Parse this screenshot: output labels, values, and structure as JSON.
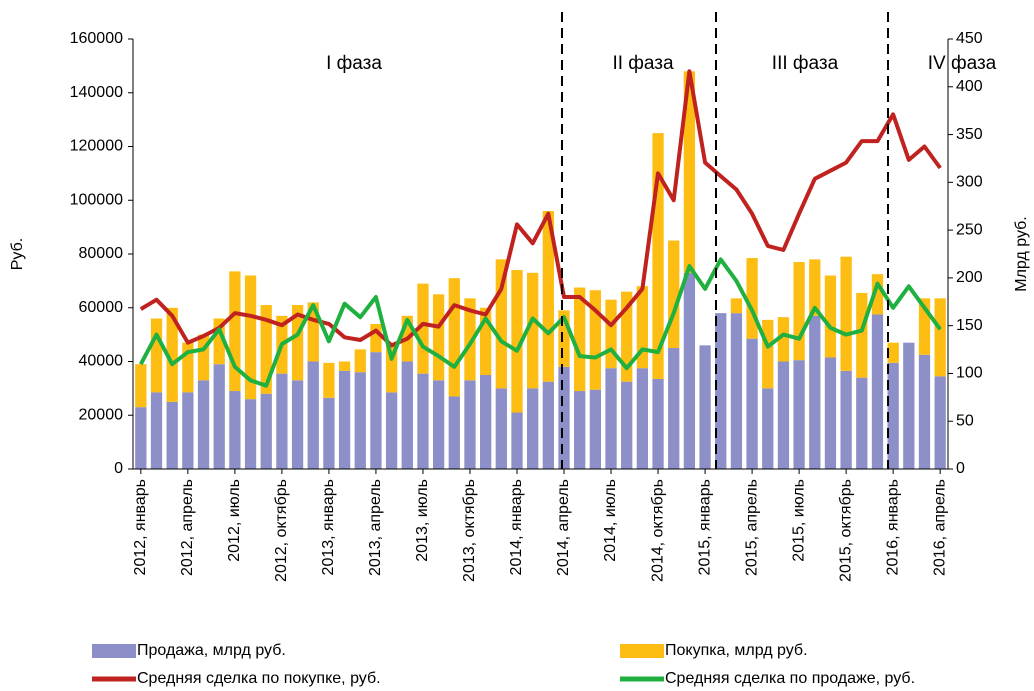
{
  "chart_data": {
    "type": "combo",
    "y_label": "Руб.",
    "y2_label": "Млрд руб.",
    "annotations": [
      "I фаза",
      "II фаза",
      "III фаза",
      "IV фаза"
    ],
    "categories": [
      "2012, январь",
      null,
      null,
      "2012, апрель",
      null,
      null,
      "2012, июль",
      null,
      null,
      "2012, октябрь",
      null,
      null,
      "2013, январь",
      null,
      null,
      "2013, апрель",
      null,
      null,
      "2013, июль",
      null,
      null,
      "2013, октябрь",
      null,
      null,
      "2014, январь",
      null,
      null,
      "2014, апрель",
      null,
      null,
      "2014, июль",
      null,
      null,
      "2014, октябрь",
      null,
      null,
      "2015, январь",
      null,
      null,
      "2015, апрель",
      null,
      null,
      "2015, июль",
      null,
      null,
      "2015, октябрь",
      null,
      null,
      "2016, январь",
      null,
      null,
      "2016, апрель"
    ],
    "ylim": [
      0,
      160000
    ],
    "yticks": [
      0,
      20000,
      40000,
      60000,
      80000,
      100000,
      120000,
      140000,
      160000
    ],
    "y2lim": [
      0,
      450
    ],
    "y2ticks": [
      0,
      50,
      100,
      150,
      200,
      250,
      300,
      350,
      400,
      450
    ],
    "series": [
      {
        "name": "Продажа, млрд  руб.",
        "type": "bar",
        "axis": "y2",
        "color": "#8c8fc8",
        "values": [
          64.7,
          80.2,
          70.3,
          80.2,
          92.8,
          109.7,
          81.6,
          73.1,
          78.8,
          99.8,
          92.8,
          112.5,
          74.5,
          102.7,
          101.3,
          122.3,
          80.2,
          112.5,
          99.8,
          92.8,
          75.9,
          92.8,
          98.4,
          84.4,
          59.1,
          84.4,
          91.4,
          106.9,
          81.6,
          83.0,
          105.5,
          91.4,
          105.5,
          94.2,
          126.6,
          205.3,
          129.4,
          163.1,
          163.1,
          136.4,
          84.4,
          112.5,
          113.9,
          160.3,
          116.7,
          102.7,
          95.6,
          161.7,
          111.1,
          132.2,
          119.5,
          97.0
        ]
      },
      {
        "name": "Покупка, млрд  руб.",
        "type": "bar",
        "axis": "y2",
        "color": "#fdbd13",
        "values": [
          45.0,
          77.3,
          98.4,
          52.0,
          47.8,
          47.8,
          125.2,
          129.4,
          92.8,
          60.5,
          78.8,
          61.9,
          36.6,
          9.8,
          23.9,
          29.5,
          49.2,
          47.8,
          94.2,
          90.0,
          123.8,
          85.8,
          70.3,
          135.0,
          149.1,
          120.9,
          178.6,
          59.1,
          108.3,
          104.1,
          71.7,
          94.2,
          85.8,
          257.3,
          112.5,
          210.9,
          0,
          0,
          15.5,
          84.4,
          71.7,
          46.4,
          102.7,
          59.1,
          85.8,
          119.5,
          88.6,
          42.2,
          21.1,
          0,
          59.1,
          81.6
        ]
      },
      {
        "name": "Средняя сделка по покупке, руб.",
        "type": "line",
        "axis": "y",
        "color": "#c0221f",
        "values": [
          59500,
          63000,
          57000,
          47000,
          49500,
          52500,
          58000,
          57000,
          55500,
          53500,
          57500,
          55500,
          54000,
          49000,
          48000,
          51500,
          46000,
          48500,
          54000,
          53000,
          61000,
          59000,
          57500,
          67000,
          91000,
          84000,
          95000,
          64000,
          64000,
          59000,
          53500,
          60000,
          67000,
          110000,
          100000,
          148000,
          114000,
          109000,
          104000,
          95000,
          83000,
          81500,
          95000,
          108000,
          111000,
          114000,
          122000,
          122000,
          132000,
          115000,
          120000,
          112000
        ]
      },
      {
        "name": "Средняя сделка по продаже, руб.",
        "type": "line",
        "axis": "y",
        "color": "#1fb040",
        "values": [
          39000,
          50000,
          39000,
          43500,
          44500,
          52000,
          38000,
          33000,
          31000,
          46500,
          50000,
          61000,
          47500,
          61500,
          56500,
          64000,
          41000,
          55500,
          45500,
          42000,
          38000,
          46500,
          56000,
          47500,
          44000,
          56000,
          50500,
          56500,
          42000,
          41500,
          44500,
          37500,
          44500,
          43500,
          58000,
          75500,
          67000,
          78000,
          70000,
          59000,
          45500,
          50000,
          48500,
          60000,
          52500,
          50000,
          51500,
          69000,
          60000,
          68000,
          60000,
          52000
        ]
      }
    ]
  }
}
